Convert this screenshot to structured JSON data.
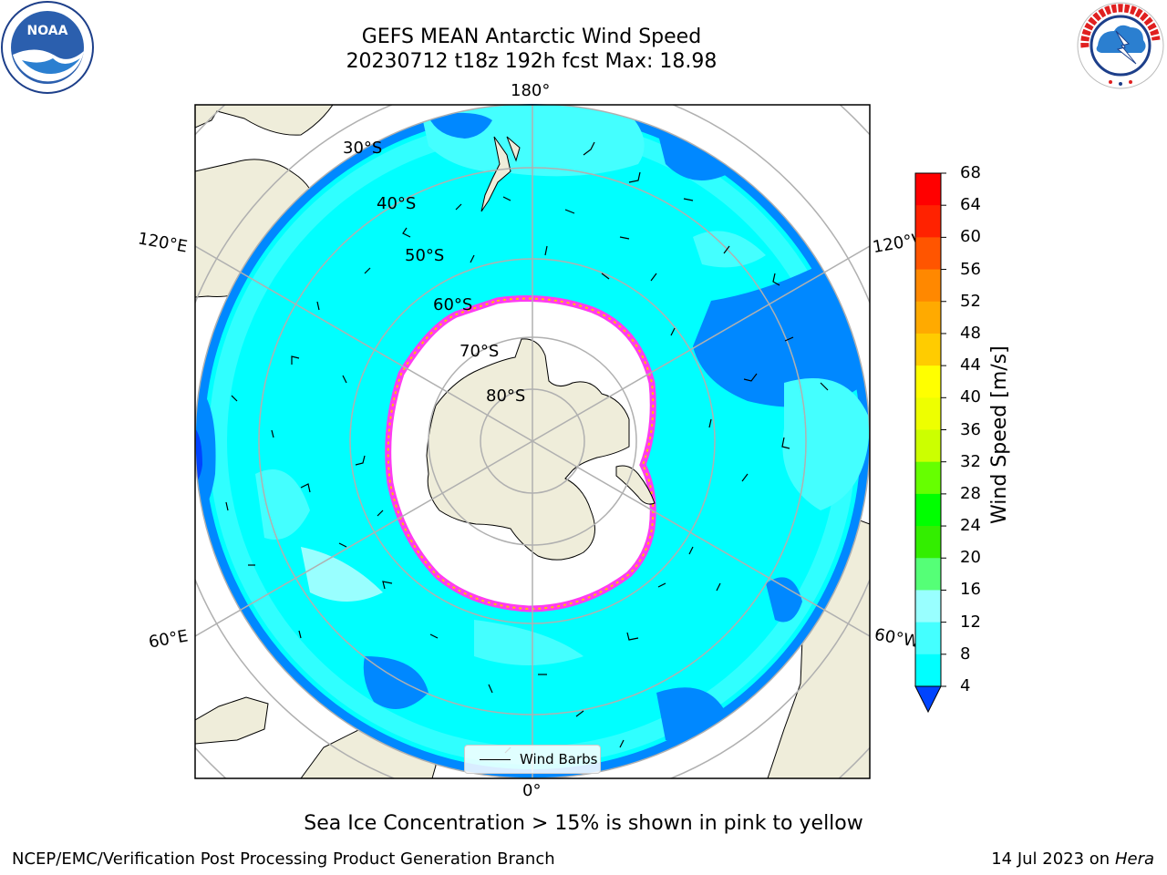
{
  "title": {
    "line1": "GEFS MEAN Antarctic Wind Speed",
    "line2": "20230712 t18z 192h fcst   Max: 18.98"
  },
  "logos": {
    "left": "NOAA",
    "right": "NATIONAL WEATHER SERVICE"
  },
  "map": {
    "lon_labels": {
      "top": "180°",
      "bottom": "0°",
      "left_upper": "120°E",
      "left_lower": "60°E",
      "right_upper": "120°W",
      "right_lower": "60°W"
    },
    "lat_labels": [
      "30°S",
      "40°S",
      "50°S",
      "60°S",
      "70°S",
      "80°S"
    ],
    "legend_label": "Wind Barbs",
    "colors": {
      "land": "#efedda",
      "coast": "#000000",
      "grid": "#b0b0b0",
      "ice": "#ffffff",
      "ice_edge_pink": "#ff3cf0",
      "ice_edge_yellow": "#ffc000"
    }
  },
  "colorbar": {
    "label": "Wind Speed [m/s]",
    "ticks": [
      4,
      8,
      12,
      16,
      20,
      24,
      28,
      32,
      36,
      40,
      44,
      48,
      52,
      56,
      60,
      64,
      68
    ],
    "colors": [
      "#0044ff",
      "#0088ff",
      "#00ffff",
      "#44ffff",
      "#99ffff",
      "#55ff77",
      "#33ee00",
      "#00ff00",
      "#66ff00",
      "#ccff00",
      "#eeff00",
      "#ffff00",
      "#ffcc00",
      "#ffaa00",
      "#ff8800",
      "#ff5500",
      "#ff2200",
      "#ff0000"
    ]
  },
  "caption": "Sea Ice Concentration > 15% is shown in pink to yellow",
  "footer": {
    "left": "NCEP/EMC/Verification Post Processing Product Generation Branch",
    "right_date": "14 Jul 2023 on ",
    "right_host": "Hera"
  }
}
